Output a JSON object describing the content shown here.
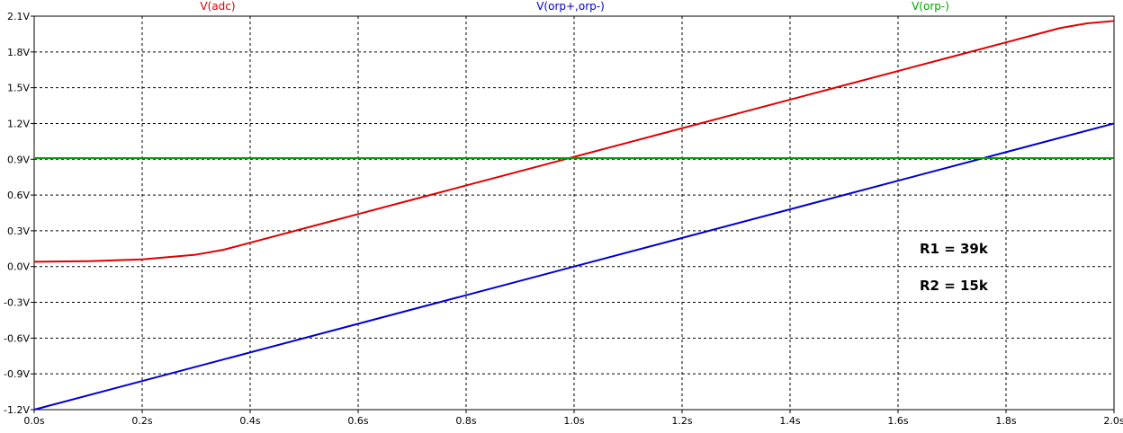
{
  "chart_data": {
    "type": "line",
    "title": "",
    "xlabel": "",
    "ylabel": "",
    "xlim": [
      0.0,
      2.0
    ],
    "ylim": [
      -1.2,
      2.1
    ],
    "grid": true,
    "x_ticks": [
      "0.0s",
      "0.2s",
      "0.4s",
      "0.6s",
      "0.8s",
      "1.0s",
      "1.2s",
      "1.4s",
      "1.6s",
      "1.8s",
      "2.0s"
    ],
    "y_ticks": [
      "2.1V",
      "1.8V",
      "1.5V",
      "1.2V",
      "0.9V",
      "0.6V",
      "0.3V",
      "0.0V",
      "-0.3V",
      "-0.6V",
      "-0.9V",
      "-1.2V"
    ],
    "series": [
      {
        "name": "V(adc)",
        "color": "#e00000",
        "points": [
          [
            0.0,
            0.04
          ],
          [
            0.1,
            0.045
          ],
          [
            0.2,
            0.06
          ],
          [
            0.3,
            0.1
          ],
          [
            0.35,
            0.14
          ],
          [
            0.4,
            0.2
          ],
          [
            0.5,
            0.32
          ],
          [
            0.6,
            0.44
          ],
          [
            0.7,
            0.56
          ],
          [
            0.8,
            0.68
          ],
          [
            0.9,
            0.8
          ],
          [
            1.0,
            0.92
          ],
          [
            1.1,
            1.04
          ],
          [
            1.2,
            1.16
          ],
          [
            1.3,
            1.28
          ],
          [
            1.4,
            1.4
          ],
          [
            1.5,
            1.52
          ],
          [
            1.6,
            1.64
          ],
          [
            1.7,
            1.76
          ],
          [
            1.8,
            1.88
          ],
          [
            1.9,
            2.0
          ],
          [
            1.95,
            2.04
          ],
          [
            2.0,
            2.06
          ]
        ]
      },
      {
        "name": "V(orp+,orp-)",
        "color": "#0000d0",
        "points": [
          [
            0.0,
            -1.2
          ],
          [
            2.0,
            1.2
          ]
        ]
      },
      {
        "name": "V(orp-)",
        "color": "#00a000",
        "points": [
          [
            0.0,
            0.91
          ],
          [
            2.0,
            0.91
          ]
        ]
      }
    ],
    "annotations": [
      "R1 = 39k",
      "R2 = 15k"
    ]
  }
}
